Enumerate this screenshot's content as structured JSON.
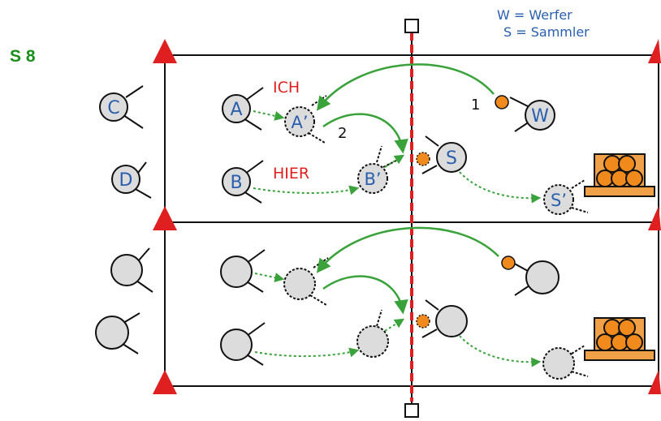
{
  "title": "S 8",
  "legend": {
    "line1": "W = Werfer",
    "line2": "S = Sammler"
  },
  "players": {
    "c": "C",
    "d": "D",
    "a": "A",
    "a_prime": "A’",
    "b": "B",
    "b_prime": "B’",
    "s": "S",
    "s_prime": "S’",
    "w": "W"
  },
  "callouts": {
    "ich": "ICH",
    "hier": "HIER",
    "step1": "1",
    "step2": "2"
  },
  "colors": {
    "net": "#e02020",
    "cone": "#e02020",
    "ball": "#f08a1c",
    "player_fill": "#dcdcdc",
    "label_blue": "#2a5fae",
    "arrow_green": "#3aa23a",
    "title_green": "#1a8f1a"
  }
}
